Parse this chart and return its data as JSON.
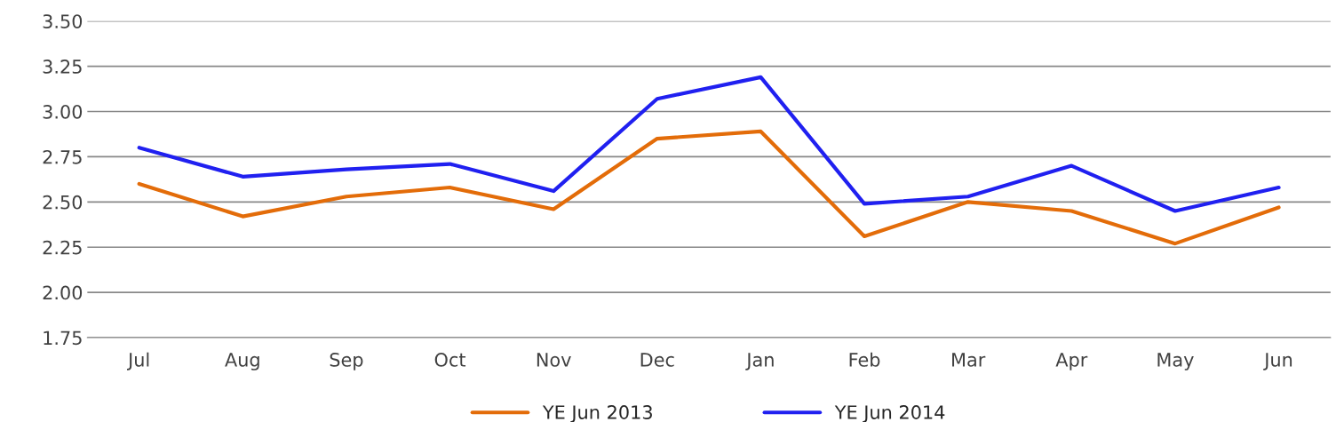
{
  "chart_data": {
    "type": "line",
    "categories": [
      "Jul",
      "Aug",
      "Sep",
      "Oct",
      "Nov",
      "Dec",
      "Jan",
      "Feb",
      "Mar",
      "Apr",
      "May",
      "Jun"
    ],
    "series": [
      {
        "name": "YE Jun 2013",
        "color": "#e36c09",
        "values": [
          2.6,
          2.42,
          2.53,
          2.58,
          2.46,
          2.85,
          2.89,
          2.31,
          2.5,
          2.45,
          2.27,
          2.47
        ]
      },
      {
        "name": "YE Jun 2014",
        "color": "#2020f0",
        "values": [
          2.8,
          2.64,
          2.68,
          2.71,
          2.56,
          3.07,
          3.19,
          2.49,
          2.53,
          2.7,
          2.45,
          2.58
        ]
      }
    ],
    "ylim": [
      1.75,
      3.5
    ],
    "yticks": [
      {
        "value": 1.75,
        "label": "1.75"
      },
      {
        "value": 2.0,
        "label": "2.00"
      },
      {
        "value": 2.25,
        "label": "2.25"
      },
      {
        "value": 2.5,
        "label": "2.50"
      },
      {
        "value": 2.75,
        "label": "2.75"
      },
      {
        "value": 3.0,
        "label": "3.00"
      },
      {
        "value": 3.25,
        "label": "3.25"
      },
      {
        "value": 3.5,
        "label": "3.50"
      }
    ],
    "grid": "y",
    "legend": "bottom",
    "marker": "none",
    "line_style": "solid"
  }
}
